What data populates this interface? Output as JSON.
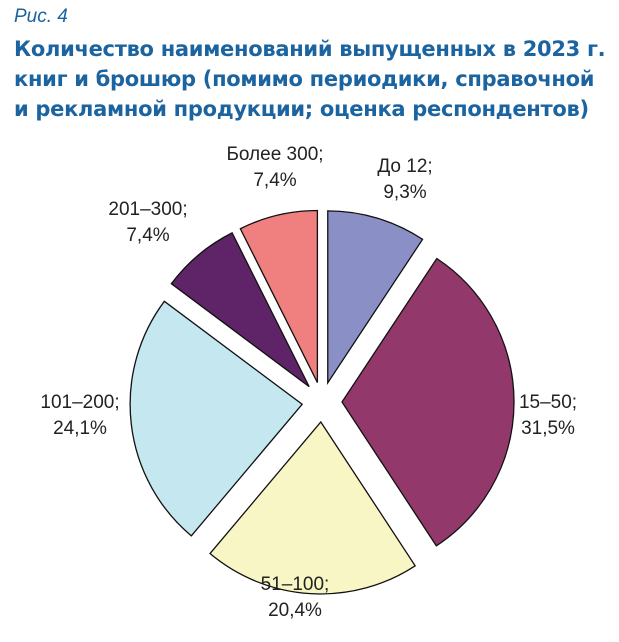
{
  "figure_label": "Рис. 4",
  "chart_data": {
    "type": "pie",
    "title": "Количество наименований выпущенных в 2023 г. книг и брошюр  (помимо периодики, справочной и рекламной продукции; оценка респондентов)",
    "exploded": true,
    "start": "top, clockwise",
    "slices": [
      {
        "label": "До 12;",
        "value": 9.3,
        "value_text": "9,3%",
        "color": "#8a8fc6"
      },
      {
        "label": "15–50;",
        "value": 31.5,
        "value_text": "31,5%",
        "color": "#93386a"
      },
      {
        "label": "51–100;",
        "value": 20.4,
        "value_text": "20,4%",
        "color": "#f7f6c4"
      },
      {
        "label": "101–200;",
        "value": 24.1,
        "value_text": "24,1%",
        "color": "#c5e7ef"
      },
      {
        "label": "201–300;",
        "value": 7.4,
        "value_text": "7,4%",
        "color": "#5e2467"
      },
      {
        "label": "Более 300;",
        "value": 7.4,
        "value_text": "7,4%",
        "color": "#f07f7f"
      }
    ]
  }
}
